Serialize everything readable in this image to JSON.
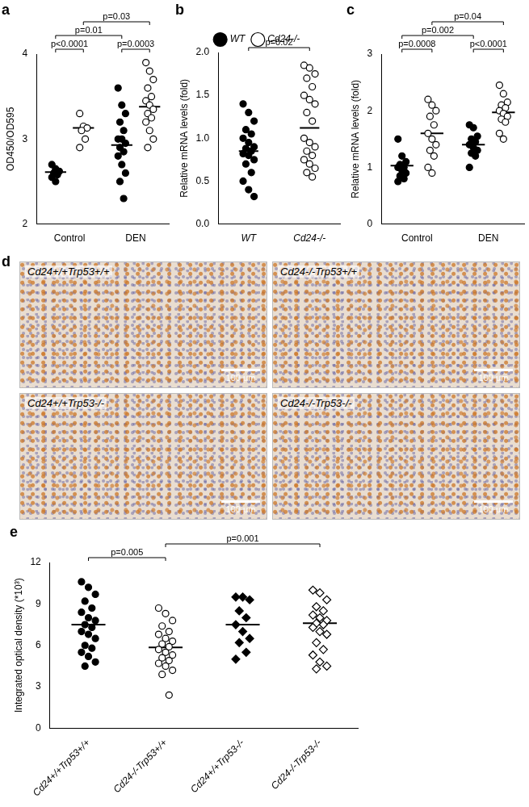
{
  "chart_data": [
    {
      "panel": "a",
      "type": "scatter",
      "y_label": "OD450/OD595",
      "categories": [
        "Control",
        "DEN"
      ],
      "ylim": [
        2,
        4
      ],
      "yticks": [
        2,
        3,
        4
      ],
      "series": [
        {
          "marker": "circle",
          "color": "#000000",
          "values": [
            [
              2.7,
              2.65,
              2.62,
              2.6,
              2.58,
              2.55,
              2.5
            ],
            [
              3.6,
              3.4,
              3.3,
              3.2,
              3.1,
              3.0,
              3.0,
              2.95,
              2.9,
              2.85,
              2.8,
              2.7,
              2.6,
              2.5,
              2.3
            ]
          ],
          "means": [
            2.61,
            2.93
          ]
        },
        {
          "marker": "circle-open",
          "color": "#000000",
          "values": [
            [
              3.3,
              3.15,
              3.13,
              3.1,
              3.0,
              2.9
            ],
            [
              3.9,
              3.8,
              3.7,
              3.6,
              3.5,
              3.45,
              3.4,
              3.35,
              3.3,
              3.25,
              3.2,
              3.1,
              3.0,
              2.9
            ]
          ],
          "means": [
            3.13,
            3.38
          ]
        }
      ],
      "annotations": [
        {
          "text": "p<0.0001",
          "between": [
            [
              0,
              0
            ],
            [
              0,
              1
            ]
          ]
        },
        {
          "text": "p=0.0003",
          "between": [
            [
              1,
              0
            ],
            [
              1,
              1
            ]
          ]
        },
        {
          "text": "p=0.01",
          "between": [
            [
              0,
              0
            ],
            [
              1,
              0
            ]
          ]
        },
        {
          "text": "p=0.03",
          "between": [
            [
              0,
              1
            ],
            [
              1,
              1
            ]
          ]
        }
      ]
    },
    {
      "panel": "b",
      "type": "scatter",
      "y_label": "Relative mRNA levels (fold)",
      "categories": [
        "WT",
        "Cd24-/-"
      ],
      "ylim": [
        0,
        2
      ],
      "yticks": [
        {
          "value": 0,
          "label": "0.0"
        },
        0.5,
        {
          "value": 1,
          "label": "1.0"
        },
        1.5,
        {
          "value": 2,
          "label": "2.0"
        }
      ],
      "legend": "top",
      "series": [
        {
          "name": "WT",
          "marker": "circle",
          "color": "#000000",
          "values": [
            [
              1.4,
              1.3,
              1.2,
              1.1,
              1.05,
              1.0,
              0.95,
              0.9,
              0.88,
              0.85,
              0.82,
              0.8,
              0.75,
              0.7,
              0.6,
              0.5,
              0.4,
              0.32
            ],
            null
          ],
          "means": [
            0.85,
            null
          ]
        },
        {
          "name": "Cd24-/-",
          "marker": "circle-open",
          "color": "#000000",
          "values": [
            null,
            [
              1.85,
              1.82,
              1.75,
              1.7,
              1.6,
              1.5,
              1.45,
              1.4,
              1.3,
              1.2,
              1.0,
              0.95,
              0.9,
              0.85,
              0.8,
              0.75,
              0.7,
              0.65,
              0.6,
              0.55
            ]
          ],
          "means": [
            null,
            1.12
          ]
        }
      ],
      "annotations": [
        {
          "text": "p=0.02",
          "between": [
            [
              0,
              0
            ],
            [
              1,
              1
            ]
          ]
        }
      ]
    },
    {
      "panel": "c",
      "type": "scatter",
      "y_label": "Relative mRNA levels (fold)",
      "categories": [
        "Control",
        "DEN"
      ],
      "ylim": [
        0,
        3
      ],
      "yticks": [
        0,
        1,
        2,
        3
      ],
      "series": [
        {
          "marker": "circle",
          "color": "#000000",
          "values": [
            [
              1.5,
              1.2,
              1.1,
              1.05,
              1.0,
              1.0,
              0.95,
              0.9,
              0.85,
              0.8,
              0.75
            ],
            [
              1.75,
              1.7,
              1.55,
              1.5,
              1.45,
              1.4,
              1.35,
              1.3,
              1.25,
              1.2,
              1.0
            ]
          ],
          "means": [
            1.03,
            1.4
          ]
        },
        {
          "marker": "circle-open",
          "color": "#000000",
          "values": [
            [
              2.2,
              2.1,
              2.0,
              1.9,
              1.75,
              1.6,
              1.5,
              1.4,
              1.3,
              1.2,
              1.0,
              0.9
            ],
            [
              2.45,
              2.3,
              2.15,
              2.1,
              2.05,
              2.0,
              1.95,
              1.9,
              1.85,
              1.8,
              1.6,
              1.5
            ]
          ],
          "means": [
            1.6,
            1.97
          ]
        }
      ],
      "annotations": [
        {
          "text": "p=0.0008",
          "between": [
            [
              0,
              0
            ],
            [
              0,
              1
            ]
          ]
        },
        {
          "text": "p<0.0001",
          "between": [
            [
              1,
              0
            ],
            [
              1,
              1
            ]
          ]
        },
        {
          "text": "p=0.002",
          "between": [
            [
              0,
              0
            ],
            [
              1,
              0
            ]
          ]
        },
        {
          "text": "p=0.04",
          "between": [
            [
              0,
              1
            ],
            [
              1,
              1
            ]
          ]
        }
      ]
    },
    {
      "panel": "d",
      "type": "image",
      "images": [
        {
          "label": "Cd24+/+Trp53+/+",
          "scale_bar": "100 μm"
        },
        {
          "label": "Cd24-/-Trp53+/+",
          "scale_bar": "100 μm"
        },
        {
          "label": "Cd24+/+Trp53-/-",
          "scale_bar": "100 μm"
        },
        {
          "label": "Cd24-/-Trp53-/-",
          "scale_bar": "100 μm"
        }
      ]
    },
    {
      "panel": "e",
      "type": "scatter",
      "y_label": "Integrated optical density (*10³)",
      "categories": [
        "Cd24+/+Trp53+/+",
        "Cd24-/-Trp53+/+",
        "Cd24+/+Trp53-/-",
        "Cd24-/-Trp53-/-"
      ],
      "ylim": [
        0,
        12
      ],
      "yticks": [
        0,
        3,
        6,
        9,
        12
      ],
      "series": [
        {
          "marker": "circle",
          "color": "#000000",
          "values": [
            [
              10.6,
              10.2,
              9.7,
              9.2,
              8.7,
              8.4,
              8.0,
              7.8,
              7.5,
              7.3,
              7.0,
              6.8,
              6.5,
              6.0,
              5.8,
              5.5,
              5.2,
              4.8,
              4.5
            ],
            null,
            null,
            null
          ],
          "means": [
            7.5,
            null,
            null,
            null
          ]
        },
        {
          "marker": "circle-open",
          "color": "#000000",
          "values": [
            null,
            [
              8.7,
              8.3,
              7.8,
              7.4,
              7.0,
              6.8,
              6.5,
              6.3,
              6.1,
              5.9,
              5.7,
              5.5,
              5.3,
              5.1,
              4.9,
              4.7,
              4.5,
              4.2,
              3.9,
              2.4
            ],
            null,
            null
          ],
          "means": [
            null,
            5.85,
            null,
            null
          ]
        },
        {
          "marker": "diamond",
          "color": "#000000",
          "values": [
            null,
            null,
            [
              9.5,
              9.5,
              9.3,
              8.5,
              8.0,
              7.5,
              7.0,
              6.5,
              6.2,
              5.5,
              5.0
            ],
            null
          ],
          "means": [
            null,
            null,
            7.5,
            null
          ]
        },
        {
          "marker": "diamond-open",
          "color": "#000000",
          "values": [
            null,
            null,
            null,
            [
              10.0,
              9.8,
              9.3,
              8.8,
              8.5,
              8.2,
              8.0,
              7.8,
              7.6,
              7.5,
              7.3,
              7.0,
              6.8,
              6.2,
              5.7,
              5.3,
              4.8,
              4.5,
              4.3
            ]
          ],
          "means": [
            null,
            null,
            null,
            7.6
          ]
        }
      ],
      "annotations": [
        {
          "text": "p=0.005",
          "between": [
            [
              0,
              0
            ],
            [
              1,
              1
            ]
          ]
        },
        {
          "text": "p=0.001",
          "between": [
            [
              1,
              1
            ],
            [
              3,
              3
            ]
          ]
        }
      ]
    }
  ]
}
